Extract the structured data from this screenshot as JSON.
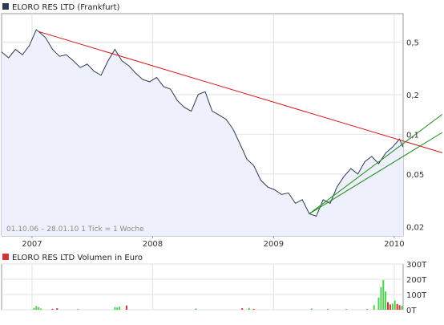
{
  "chart_data": [
    {
      "type": "line",
      "title": "ELORO RES LTD (Frankfurt)",
      "caption": "01.10.06 – 28.01.10   1 Tick = 1 Woche",
      "x_ticks": [
        "2007",
        "2008",
        "2009",
        "2010"
      ],
      "y_ticks": [
        "0,5",
        "0,2",
        "0,1",
        "0,05",
        "0,02"
      ],
      "y_tick_values": [
        0.5,
        0.2,
        0.1,
        0.05,
        0.02
      ],
      "y_scale": "log",
      "xlim": [
        "2006-10-01",
        "2010-01-28"
      ],
      "ylim": [
        0.017,
        0.82
      ],
      "grid": true,
      "colors": {
        "price_line": "#2c3a52",
        "price_fill": "#eef1fb",
        "trend_down": "#d01616",
        "trend_up": "#1a8a1a",
        "header_square": "#2c3a52"
      },
      "series": [
        {
          "x": [
            "2006-10-01",
            "2006-10-22",
            "2006-11-12",
            "2006-12-03",
            "2006-12-24",
            "2007-01-14",
            "2007-01-28",
            "2007-02-11",
            "2007-03-04",
            "2007-03-25",
            "2007-04-15",
            "2007-05-06",
            "2007-05-27",
            "2007-06-17",
            "2007-07-08",
            "2007-07-29",
            "2007-08-19",
            "2007-09-09",
            "2007-09-30",
            "2007-10-21",
            "2007-11-11",
            "2007-12-02",
            "2007-12-23",
            "2008-01-13",
            "2008-02-03",
            "2008-02-24",
            "2008-03-16",
            "2008-04-06",
            "2008-04-27",
            "2008-05-18",
            "2008-06-08",
            "2008-06-29",
            "2008-07-20",
            "2008-08-10",
            "2008-08-31",
            "2008-09-21",
            "2008-10-12",
            "2008-11-02",
            "2008-11-23",
            "2008-12-14",
            "2009-01-04",
            "2009-01-25",
            "2009-02-15",
            "2009-03-08",
            "2009-03-29",
            "2009-04-19",
            "2009-05-10",
            "2009-05-31",
            "2009-06-21",
            "2009-07-12",
            "2009-08-02",
            "2009-08-23",
            "2009-09-13",
            "2009-10-04",
            "2009-10-25",
            "2009-11-15",
            "2009-12-06",
            "2009-12-27",
            "2010-01-17",
            "2010-01-28"
          ],
          "values": [
            0.42,
            0.38,
            0.44,
            0.4,
            0.47,
            0.62,
            0.58,
            0.54,
            0.44,
            0.39,
            0.4,
            0.36,
            0.32,
            0.34,
            0.3,
            0.28,
            0.36,
            0.44,
            0.36,
            0.33,
            0.29,
            0.26,
            0.25,
            0.27,
            0.23,
            0.22,
            0.18,
            0.16,
            0.15,
            0.2,
            0.21,
            0.15,
            0.14,
            0.13,
            0.11,
            0.085,
            0.065,
            0.058,
            0.045,
            0.04,
            0.038,
            0.035,
            0.036,
            0.03,
            0.032,
            0.025,
            0.024,
            0.032,
            0.03,
            0.04,
            0.048,
            0.055,
            0.05,
            0.062,
            0.068,
            0.06,
            0.072,
            0.08,
            0.092,
            0.08
          ]
        }
      ],
      "trendlines": [
        {
          "from": [
            "2007-01-21",
            0.6
          ],
          "to": [
            "2010-01-28",
            0.089
          ]
        },
        {
          "from": [
            "2009-04-19",
            0.025
          ],
          "to": [
            "2010-01-28",
            0.085
          ]
        },
        {
          "from": [
            "2009-04-19",
            0.025
          ],
          "to": [
            "2010-01-28",
            0.068
          ]
        }
      ]
    },
    {
      "type": "bar",
      "title": "ELORO RES LTD Volumen in Euro",
      "y_ticks": [
        "300T",
        "200T",
        "100T",
        "0T"
      ],
      "y_tick_values": [
        300,
        200,
        100,
        0
      ],
      "ylim": [
        0,
        300
      ],
      "grid": true,
      "colors": {
        "up": "#4fd14f",
        "down": "#d43333",
        "header_square": "#d43333"
      },
      "bars": [
        {
          "date": "2007-01-07",
          "value": 12,
          "dir": "up"
        },
        {
          "date": "2007-01-14",
          "value": 24,
          "dir": "up"
        },
        {
          "date": "2007-01-21",
          "value": 18,
          "dir": "up"
        },
        {
          "date": "2007-01-28",
          "value": 8,
          "dir": "up"
        },
        {
          "date": "2007-03-04",
          "value": 6,
          "dir": "down"
        },
        {
          "date": "2007-03-18",
          "value": 10,
          "dir": "down"
        },
        {
          "date": "2007-05-20",
          "value": 5,
          "dir": "up"
        },
        {
          "date": "2007-09-09",
          "value": 18,
          "dir": "up"
        },
        {
          "date": "2007-09-16",
          "value": 14,
          "dir": "up"
        },
        {
          "date": "2007-09-23",
          "value": 20,
          "dir": "up"
        },
        {
          "date": "2007-10-14",
          "value": 28,
          "dir": "down"
        },
        {
          "date": "2008-05-11",
          "value": 8,
          "dir": "up"
        },
        {
          "date": "2008-09-28",
          "value": 10,
          "dir": "down"
        },
        {
          "date": "2008-10-19",
          "value": 12,
          "dir": "up"
        },
        {
          "date": "2008-11-02",
          "value": 6,
          "dir": "down"
        },
        {
          "date": "2009-04-26",
          "value": 8,
          "dir": "up"
        },
        {
          "date": "2009-06-14",
          "value": 6,
          "dir": "up"
        },
        {
          "date": "2009-08-09",
          "value": 5,
          "dir": "up"
        },
        {
          "date": "2009-10-11",
          "value": 6,
          "dir": "up"
        },
        {
          "date": "2009-11-01",
          "value": 30,
          "dir": "up"
        },
        {
          "date": "2009-11-15",
          "value": 80,
          "dir": "up"
        },
        {
          "date": "2009-11-22",
          "value": 150,
          "dir": "up"
        },
        {
          "date": "2009-11-29",
          "value": 195,
          "dir": "up"
        },
        {
          "date": "2009-12-06",
          "value": 120,
          "dir": "up"
        },
        {
          "date": "2009-12-13",
          "value": 50,
          "dir": "down"
        },
        {
          "date": "2009-12-20",
          "value": 35,
          "dir": "down"
        },
        {
          "date": "2009-12-27",
          "value": 40,
          "dir": "up"
        },
        {
          "date": "2010-01-03",
          "value": 60,
          "dir": "up"
        },
        {
          "date": "2010-01-10",
          "value": 38,
          "dir": "down"
        },
        {
          "date": "2010-01-17",
          "value": 30,
          "dir": "down"
        },
        {
          "date": "2010-01-24",
          "value": 25,
          "dir": "up"
        }
      ]
    }
  ]
}
